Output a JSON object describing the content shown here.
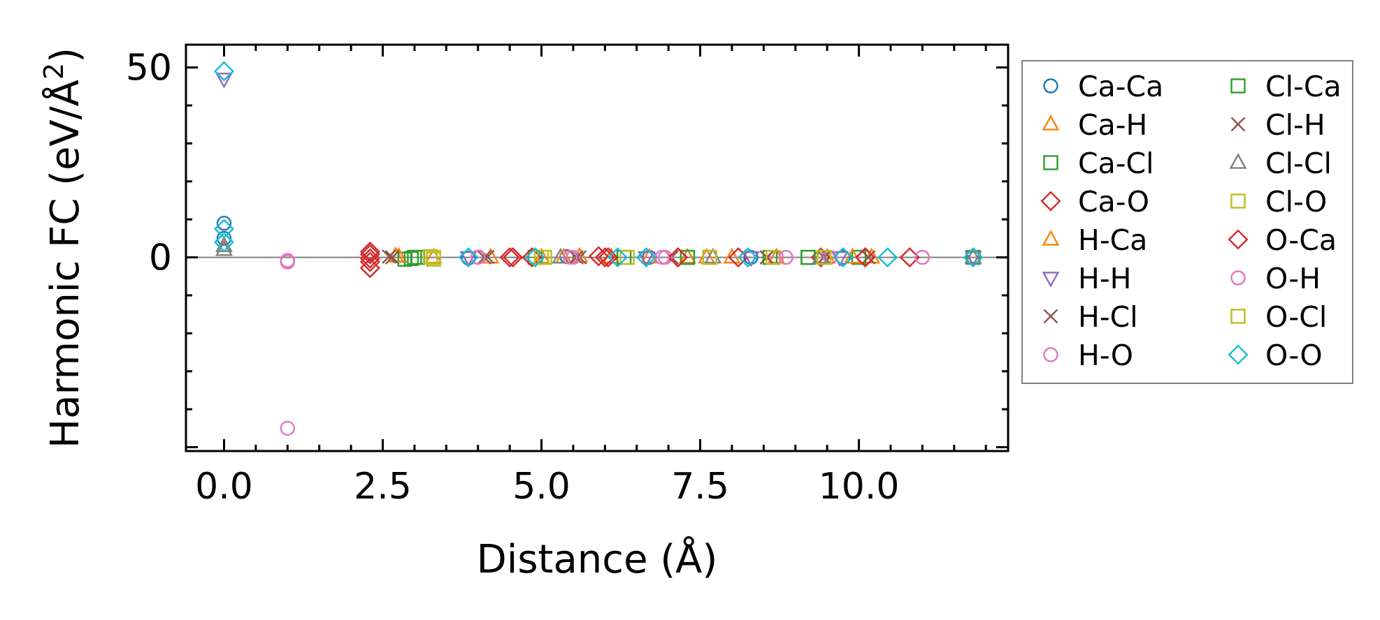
{
  "chart_data": {
    "type": "scatter",
    "title": "",
    "xlabel": "Distance (Å)",
    "ylabel_main": "Harmonic FC (eV/Å",
    "ylabel_sup": "2",
    "ylabel_close": ")",
    "xlim": [
      -0.6,
      12.35
    ],
    "ylim": [
      -51,
      56
    ],
    "xticks": [
      0.0,
      2.5,
      5.0,
      7.5,
      10.0
    ],
    "xtick_labels": [
      "0.0",
      "2.5",
      "5.0",
      "7.5",
      "10.0"
    ],
    "yticks": [
      0,
      50
    ],
    "ytick_labels": [
      "0",
      "50"
    ],
    "zero_line": 0,
    "legend_position": "outside-right",
    "series": [
      {
        "name": "Ca-Ca",
        "marker": "circle",
        "color": "#1f77b4",
        "points": [
          [
            0,
            9
          ],
          [
            0,
            5
          ],
          [
            3.85,
            -0.2
          ],
          [
            5.4,
            0.2
          ],
          [
            6.7,
            0
          ],
          [
            8.3,
            0
          ],
          [
            9.75,
            0
          ],
          [
            11.8,
            0
          ]
        ]
      },
      {
        "name": "Ca-H",
        "marker": "triangle-up",
        "color": "#ff7f0e",
        "points": [
          [
            2.7,
            0.3
          ],
          [
            3.3,
            0
          ],
          [
            4.2,
            0
          ],
          [
            5.0,
            0
          ],
          [
            5.6,
            0.2
          ],
          [
            6.1,
            0
          ],
          [
            6.7,
            0
          ],
          [
            7.3,
            0
          ],
          [
            8.0,
            0
          ],
          [
            8.7,
            0
          ],
          [
            9.5,
            0
          ],
          [
            10.2,
            0
          ],
          [
            11.8,
            0
          ]
        ]
      },
      {
        "name": "Ca-Cl",
        "marker": "square",
        "color": "#2ca02c",
        "points": [
          [
            2.85,
            -0.5
          ],
          [
            3.0,
            0
          ],
          [
            4.9,
            0
          ],
          [
            6.3,
            0
          ],
          [
            7.3,
            0
          ],
          [
            8.6,
            0
          ],
          [
            9.2,
            0
          ],
          [
            10.0,
            0
          ],
          [
            11.8,
            0
          ]
        ]
      },
      {
        "name": "Ca-O",
        "marker": "diamond",
        "color": "#d62728",
        "points": [
          [
            2.3,
            1.5
          ],
          [
            2.3,
            -0.3
          ],
          [
            2.3,
            -2.8
          ],
          [
            4.55,
            0
          ],
          [
            4.85,
            0
          ],
          [
            5.9,
            0.3
          ],
          [
            6.05,
            0
          ],
          [
            7.15,
            0
          ],
          [
            8.1,
            0
          ],
          [
            9.4,
            0
          ],
          [
            10.1,
            0
          ],
          [
            10.8,
            0
          ]
        ]
      },
      {
        "name": "H-Ca",
        "marker": "triangle-up",
        "color": "#ff7f0e",
        "points": [
          [
            2.75,
            0.2
          ],
          [
            5.35,
            0
          ],
          [
            7.6,
            0
          ],
          [
            9.9,
            0
          ]
        ]
      },
      {
        "name": "H-H",
        "marker": "triangle-down",
        "color": "#9467bd",
        "points": [
          [
            0,
            47
          ],
          [
            3.85,
            0
          ],
          [
            6.65,
            0
          ],
          [
            8.3,
            0
          ],
          [
            9.7,
            0
          ],
          [
            11.8,
            0
          ]
        ]
      },
      {
        "name": "H-Cl",
        "marker": "x",
        "color": "#8c564b",
        "points": [
          [
            2.6,
            0.2
          ],
          [
            4.15,
            0.1
          ],
          [
            5.6,
            0
          ],
          [
            7.05,
            0
          ],
          [
            8.55,
            0
          ],
          [
            9.45,
            0
          ],
          [
            10.15,
            0
          ]
        ]
      },
      {
        "name": "H-O",
        "marker": "circle",
        "color": "#e377c2",
        "points": [
          [
            1.0,
            -1.2
          ],
          [
            1.0,
            -45
          ],
          [
            4.0,
            0
          ],
          [
            5.5,
            0
          ],
          [
            6.95,
            0
          ],
          [
            8.7,
            0
          ],
          [
            8.85,
            0
          ],
          [
            9.55,
            0
          ],
          [
            11.0,
            0
          ]
        ]
      },
      {
        "name": "Cl-Ca",
        "marker": "square",
        "color": "#2ca02c",
        "points": [
          [
            2.95,
            -0.3
          ],
          [
            3.05,
            0
          ],
          [
            7.3,
            0
          ],
          [
            9.2,
            0
          ]
        ]
      },
      {
        "name": "Cl-H",
        "marker": "x",
        "color": "#8c564b",
        "points": [
          [
            2.65,
            0
          ],
          [
            4.1,
            0
          ],
          [
            5.55,
            0
          ],
          [
            8.55,
            0
          ]
        ]
      },
      {
        "name": "Cl-Cl",
        "marker": "triangle-up",
        "color": "#7f7f7f",
        "points": [
          [
            0,
            3
          ],
          [
            0,
            2
          ],
          [
            5.3,
            0
          ],
          [
            7.7,
            0
          ],
          [
            9.4,
            0
          ],
          [
            11.8,
            0
          ]
        ]
      },
      {
        "name": "Cl-O",
        "marker": "square",
        "color": "#bcbd22",
        "points": [
          [
            3.3,
            0
          ],
          [
            3.3,
            -0.5
          ],
          [
            5.05,
            0
          ],
          [
            6.35,
            0
          ],
          [
            7.65,
            0
          ],
          [
            8.65,
            0
          ],
          [
            9.45,
            0
          ]
        ]
      },
      {
        "name": "O-Ca",
        "marker": "diamond",
        "color": "#d62728",
        "points": [
          [
            2.3,
            0.8
          ],
          [
            2.3,
            -1.2
          ],
          [
            4.5,
            0
          ],
          [
            6.0,
            0
          ],
          [
            7.15,
            0
          ],
          [
            10.1,
            0
          ]
        ]
      },
      {
        "name": "O-H",
        "marker": "circle",
        "color": "#e377c2",
        "points": [
          [
            1.0,
            -0.8
          ],
          [
            4.0,
            0.1
          ],
          [
            5.45,
            0
          ],
          [
            6.9,
            0
          ],
          [
            8.85,
            0
          ],
          [
            11.0,
            0
          ]
        ]
      },
      {
        "name": "O-Cl",
        "marker": "square",
        "color": "#bcbd22",
        "points": [
          [
            3.25,
            0.2
          ],
          [
            5.0,
            0
          ],
          [
            7.65,
            0
          ],
          [
            9.45,
            0
          ]
        ]
      },
      {
        "name": "O-O",
        "marker": "diamond",
        "color": "#17becf",
        "points": [
          [
            0,
            49
          ],
          [
            0,
            7.5
          ],
          [
            0,
            4
          ],
          [
            3.85,
            0
          ],
          [
            4.9,
            0
          ],
          [
            6.2,
            0
          ],
          [
            6.65,
            0
          ],
          [
            8.25,
            0
          ],
          [
            9.75,
            0
          ],
          [
            10.45,
            0
          ],
          [
            11.8,
            0
          ]
        ]
      }
    ]
  }
}
